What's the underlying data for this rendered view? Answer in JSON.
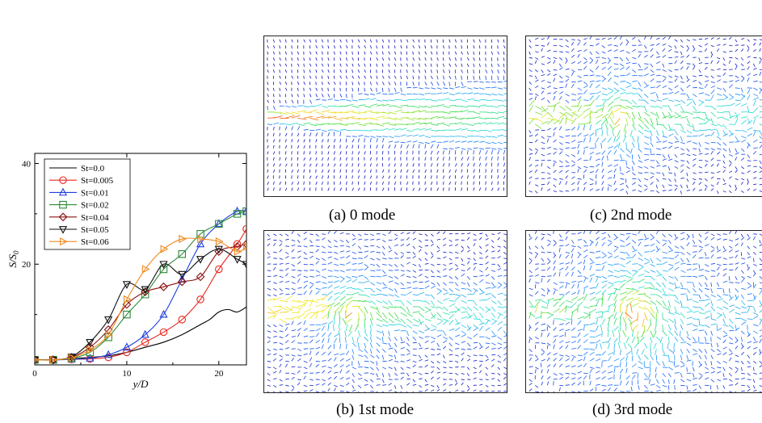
{
  "chart_data": {
    "type": "line",
    "xlabel": "y/D",
    "ylabel_main": "S/S",
    "ylabel_sub": "0",
    "xlim": [
      0,
      23
    ],
    "ylim": [
      0,
      42
    ],
    "xticks": [
      0,
      10,
      20
    ],
    "xtick_labels": [
      "0",
      "10",
      "20"
    ],
    "yticks": [
      20,
      40
    ],
    "ytick_labels": [
      "20",
      "40"
    ],
    "grid": false,
    "legend_position": "top-left",
    "series": [
      {
        "name": "St=0.0",
        "color": "#000000",
        "marker": "none",
        "x": [
          0,
          2,
          4,
          6,
          8,
          10,
          12,
          14,
          16,
          18,
          19,
          20,
          21,
          22,
          23
        ],
        "y": [
          1.0,
          1.0,
          1.2,
          1.5,
          1.8,
          2.5,
          3.5,
          4.5,
          6.0,
          8.0,
          9.0,
          10.5,
          11.0,
          10.5,
          11.5
        ]
      },
      {
        "name": "St=0.005",
        "color": "#e8261e",
        "marker": "circle",
        "x": [
          0,
          2,
          4,
          6,
          8,
          10,
          12,
          14,
          16,
          18,
          20,
          22,
          23
        ],
        "y": [
          1.0,
          1.0,
          1.1,
          1.2,
          1.5,
          2.5,
          4.5,
          6.5,
          9.0,
          13.0,
          19.0,
          24.0,
          27.0
        ]
      },
      {
        "name": "St=0.01",
        "color": "#1f3fe0",
        "marker": "triangle-up",
        "x": [
          0,
          2,
          4,
          6,
          8,
          10,
          12,
          14,
          16,
          18,
          20,
          22,
          23
        ],
        "y": [
          1.0,
          1.0,
          1.1,
          1.3,
          2.0,
          3.5,
          6.0,
          10.0,
          17.0,
          24.0,
          28.0,
          30.5,
          30.5
        ]
      },
      {
        "name": "St=0.02",
        "color": "#2f8a3a",
        "marker": "square",
        "x": [
          0,
          2,
          4,
          6,
          8,
          10,
          12,
          14,
          16,
          18,
          20,
          22,
          23
        ],
        "y": [
          1.0,
          1.0,
          1.3,
          2.5,
          5.5,
          10.0,
          14.0,
          19.0,
          22.0,
          26.0,
          28.0,
          30.0,
          30.5
        ]
      },
      {
        "name": "St=0.04",
        "color": "#8b1010",
        "marker": "diamond",
        "x": [
          0,
          2,
          4,
          6,
          8,
          10,
          12,
          14,
          16,
          18,
          20,
          22,
          23
        ],
        "y": [
          1.0,
          1.0,
          1.5,
          3.5,
          7.0,
          12.0,
          14.5,
          15.5,
          16.5,
          17.5,
          22.5,
          23.5,
          24.0
        ]
      },
      {
        "name": "St=0.05",
        "color": "#111111",
        "marker": "triangle-down",
        "x": [
          0,
          2,
          4,
          6,
          8,
          10,
          12,
          14,
          16,
          18,
          20,
          22,
          23
        ],
        "y": [
          1.0,
          1.0,
          1.6,
          4.5,
          9.0,
          16.0,
          15.0,
          20.0,
          18.0,
          21.0,
          23.0,
          21.0,
          20.0
        ]
      },
      {
        "name": "St=0.06",
        "color": "#f08a1e",
        "marker": "triangle-right",
        "x": [
          0,
          2,
          4,
          6,
          8,
          10,
          12,
          14,
          16,
          18,
          20,
          22,
          23
        ],
        "y": [
          1.0,
          1.0,
          1.4,
          3.0,
          6.0,
          13.0,
          19.0,
          23.0,
          25.0,
          25.0,
          24.5,
          22.5,
          23.5
        ]
      }
    ]
  },
  "panels": [
    {
      "id": "a",
      "caption": "(a) 0 mode",
      "mode": 0
    },
    {
      "id": "c",
      "caption": "(c) 2nd mode",
      "mode": 2
    },
    {
      "id": "b",
      "caption": "(b) 1st mode",
      "mode": 1
    },
    {
      "id": "d",
      "caption": "(d) 3rd mode",
      "mode": 3
    }
  ],
  "colors": {
    "vector_low": "#1010c0",
    "vector_high": "#ff1010"
  }
}
